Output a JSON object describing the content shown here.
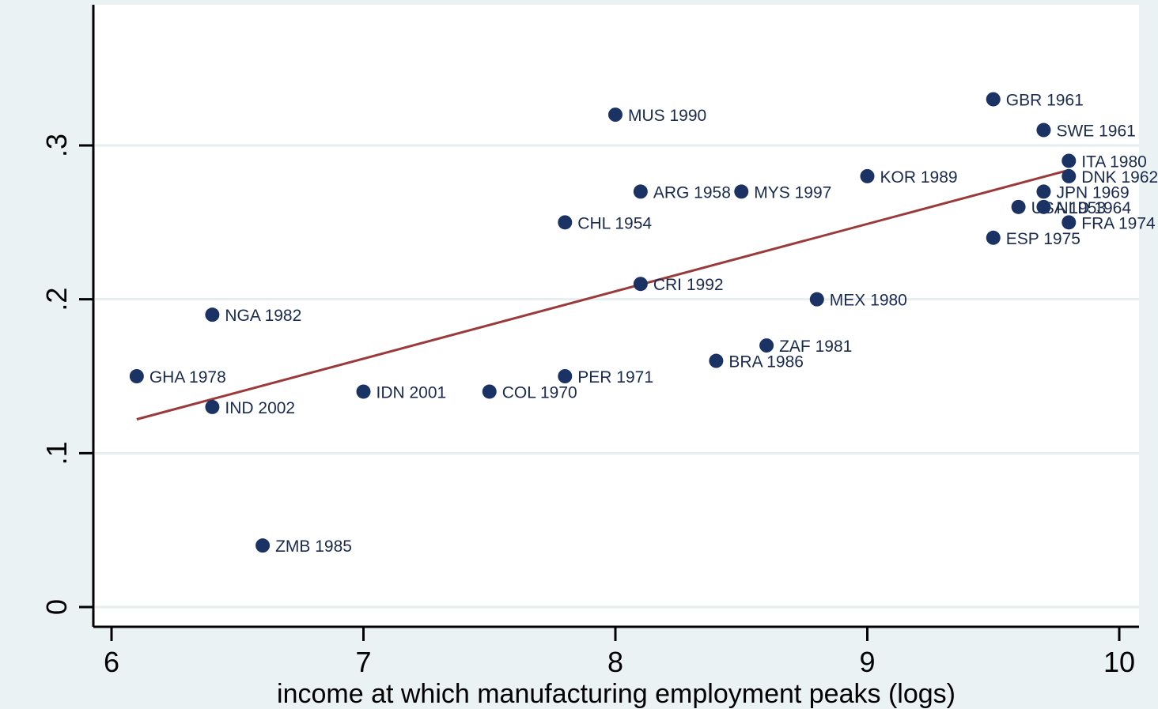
{
  "chart_data": {
    "type": "scatter",
    "title": "",
    "xlabel": "income at which manufacturing employment peaks (logs)",
    "ylabel": "",
    "xlim": [
      6,
      10
    ],
    "ylim": [
      0,
      0.35
    ],
    "x_ticks": [
      {
        "value": 6,
        "label": "6"
      },
      {
        "value": 7,
        "label": "7"
      },
      {
        "value": 8,
        "label": "8"
      },
      {
        "value": 9,
        "label": "9"
      },
      {
        "value": 10,
        "label": "10"
      }
    ],
    "y_ticks": [
      {
        "value": 0,
        "label": "0"
      },
      {
        "value": 0.1,
        "label": ".1"
      },
      {
        "value": 0.2,
        "label": ".2"
      },
      {
        "value": 0.3,
        "label": ".3"
      }
    ],
    "grid": "horizontal",
    "colors": {
      "marker": "#1b3264",
      "fit_line": "#9b3a3a",
      "plot_background": "#ffffff",
      "outer_background": "#eaf2f3",
      "gridline": "#e6eef0",
      "highlight": "#a9c4de"
    },
    "points": [
      {
        "label": "GBR 1961",
        "x": 9.5,
        "y": 0.33
      },
      {
        "label": "MUS 1990",
        "x": 8.0,
        "y": 0.32
      },
      {
        "label": "SWE 1961",
        "x": 9.7,
        "y": 0.31
      },
      {
        "label": "ITA 1980",
        "x": 9.8,
        "y": 0.29
      },
      {
        "label": "KOR 1989",
        "x": 9.0,
        "y": 0.28
      },
      {
        "label": "DNK 1962",
        "x": 9.8,
        "y": 0.28
      },
      {
        "label": "ARG 1958",
        "x": 8.1,
        "y": 0.27
      },
      {
        "label": "MYS 1997",
        "x": 8.5,
        "y": 0.27
      },
      {
        "label": "JPN 1969",
        "x": 9.7,
        "y": 0.27
      },
      {
        "label": "USA 1953",
        "x": 9.6,
        "y": 0.26
      },
      {
        "label": "NLD 1964",
        "x": 9.7,
        "y": 0.26
      },
      {
        "label": "CHL 1954",
        "x": 7.8,
        "y": 0.25
      },
      {
        "label": "FRA 1974",
        "x": 9.8,
        "y": 0.25
      },
      {
        "label": "ESP 1975",
        "x": 9.5,
        "y": 0.24
      },
      {
        "label": "CRI 1992",
        "x": 8.1,
        "y": 0.21
      },
      {
        "label": "MEX 1980",
        "x": 8.8,
        "y": 0.2
      },
      {
        "label": "NGA 1982",
        "x": 6.4,
        "y": 0.19
      },
      {
        "label": "ZAF 1981",
        "x": 8.6,
        "y": 0.17
      },
      {
        "label": "BRA 1986",
        "x": 8.4,
        "y": 0.16
      },
      {
        "label": "GHA 1978",
        "x": 6.1,
        "y": 0.15
      },
      {
        "label": "PER 1971",
        "x": 7.8,
        "y": 0.15
      },
      {
        "label": "IDN 2001",
        "x": 7.0,
        "y": 0.14
      },
      {
        "label": "COL 1970",
        "x": 7.5,
        "y": 0.14
      },
      {
        "label": "IND 2002",
        "x": 6.4,
        "y": 0.13
      },
      {
        "label": "ZMB 1985",
        "x": 6.6,
        "y": 0.04
      }
    ],
    "fit_line": {
      "x": [
        6.1,
        9.8
      ],
      "y": [
        0.122,
        0.284
      ]
    }
  }
}
